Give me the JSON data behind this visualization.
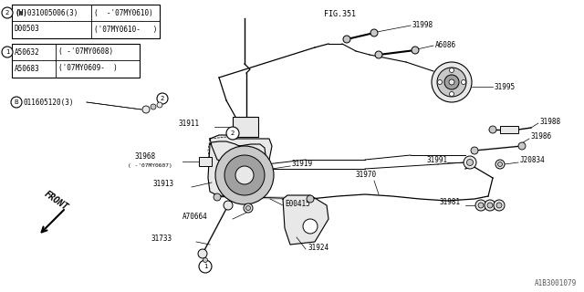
{
  "bg_color": "#ffffff",
  "line_color": "#000000",
  "fig_width": 6.4,
  "fig_height": 3.2,
  "dpi": 100,
  "watermark": "A1B3001079",
  "fig_ref": "FIG.351",
  "table1_rows": [
    [
      "(W)031005006(3)",
      "(  -'07MY0610)"
    ],
    [
      "D00503",
      "('07MY0610-   )"
    ]
  ],
  "table1_circle": "2",
  "table2_rows": [
    [
      "A50632",
      "( -'07MY0608)"
    ],
    [
      "A50683",
      "('07MY0609-  )"
    ]
  ],
  "table2_circle": "1",
  "bolt_label": "011605120(3)",
  "bolt_circle": "B",
  "front_label": "FRONT"
}
